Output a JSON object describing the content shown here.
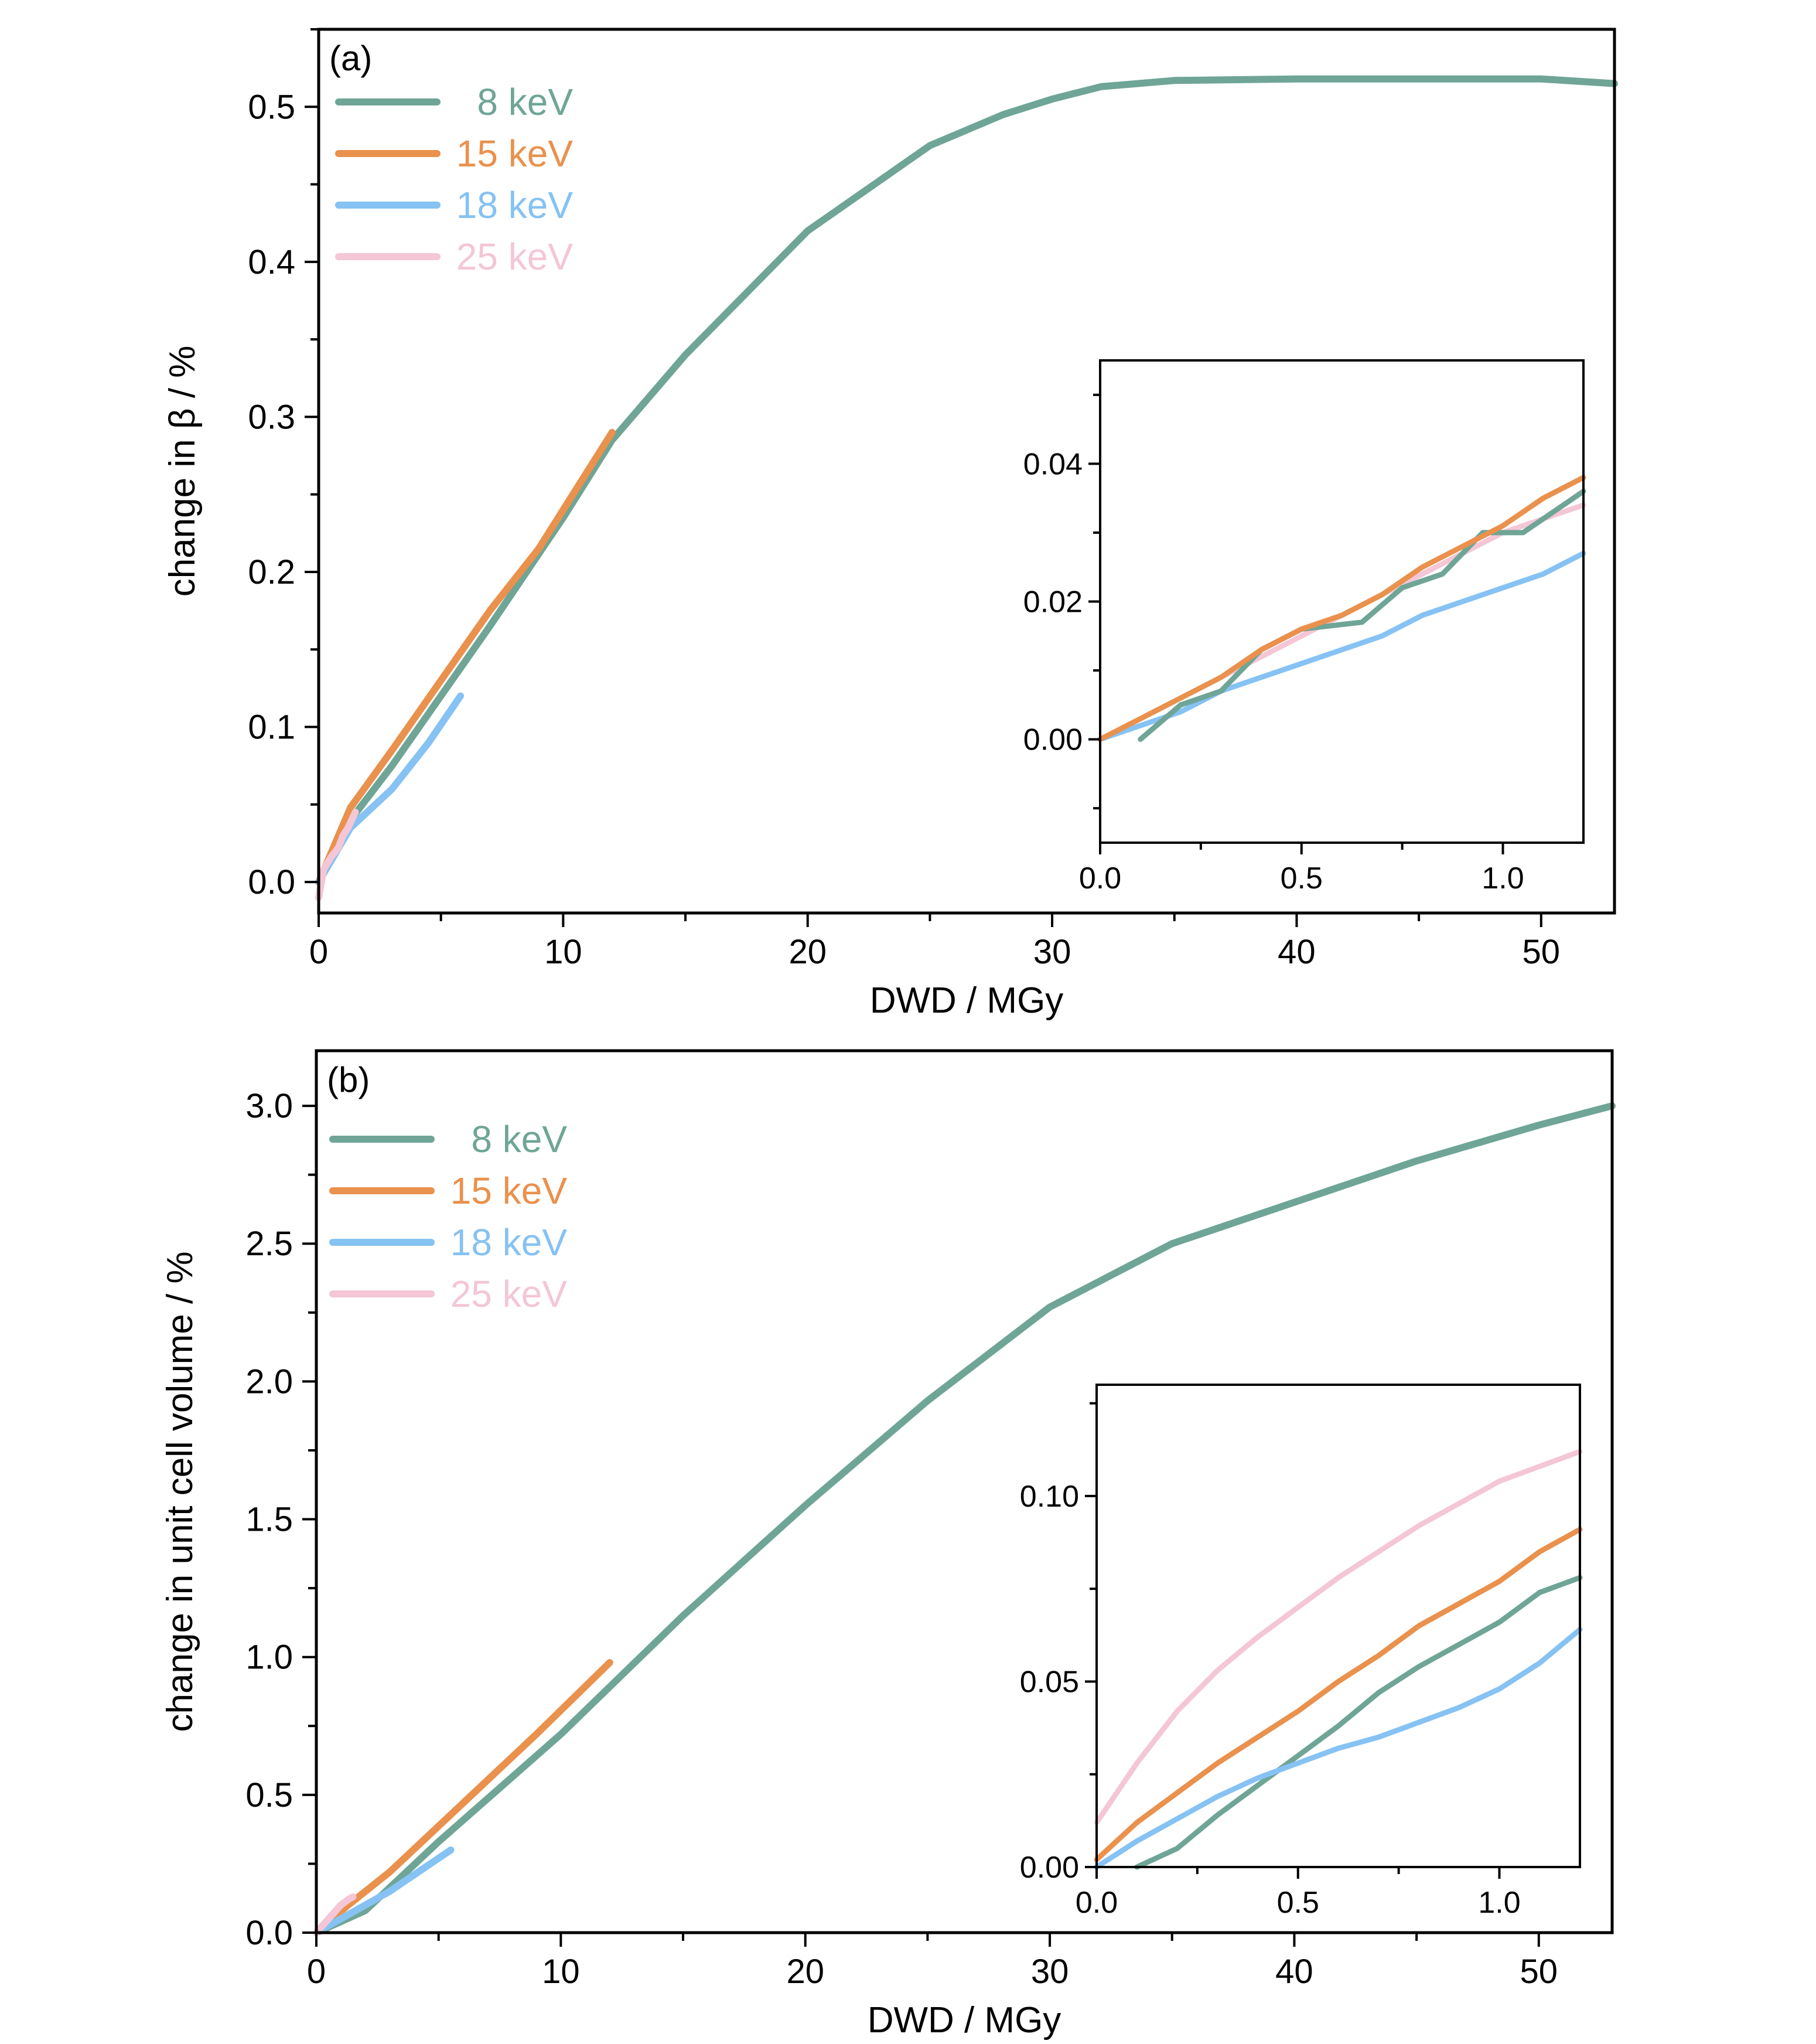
{
  "colors": {
    "8 keV": "#6fa596",
    "15 keV": "#e9914d",
    "18 keV": "#86c2f3",
    "25 keV": "#f4c6d6",
    "axis": "#000000"
  },
  "chart_data": [
    {
      "id": "a",
      "type": "line",
      "panel_label": "(a)",
      "xlabel": "DWD / MGy",
      "ylabel": "change in β / %",
      "xlim": [
        0,
        53
      ],
      "ylim": [
        -0.02,
        0.55
      ],
      "xticks": [
        0,
        10,
        20,
        30,
        40,
        50
      ],
      "xticklabels": [
        "0",
        "10",
        "20",
        "30",
        "40",
        "50"
      ],
      "yticks": [
        0.0,
        0.1,
        0.2,
        0.3,
        0.4,
        0.5
      ],
      "yticklabels": [
        "0.0",
        "0.1",
        "0.2",
        "0.3",
        "0.4",
        "0.5"
      ],
      "legend": {
        "position": "top-left",
        "entries": [
          "8 keV",
          "15 keV",
          "18 keV",
          "25 keV"
        ]
      },
      "series": [
        {
          "name": "8 keV",
          "x": [
            0,
            1.3,
            3,
            5,
            7,
            10,
            12,
            15,
            20,
            25,
            28,
            30,
            32,
            35,
            40,
            45,
            50,
            53
          ],
          "y": [
            0,
            0.04,
            0.075,
            0.12,
            0.165,
            0.235,
            0.285,
            0.34,
            0.42,
            0.475,
            0.495,
            0.505,
            0.513,
            0.517,
            0.518,
            0.518,
            0.518,
            0.515
          ]
        },
        {
          "name": "15 keV",
          "x": [
            0,
            1.3,
            3,
            5,
            7,
            9,
            11,
            12
          ],
          "y": [
            0,
            0.048,
            0.085,
            0.13,
            0.175,
            0.215,
            0.265,
            0.29
          ]
        },
        {
          "name": "18 keV",
          "x": [
            0,
            1.3,
            3,
            4.5,
            5.8
          ],
          "y": [
            0,
            0.035,
            0.06,
            0.09,
            0.12
          ]
        },
        {
          "name": "25 keV",
          "x": [
            0,
            0.2,
            0.5,
            0.8,
            1.0,
            1.2,
            1.5
          ],
          "y": [
            -0.01,
            0.008,
            0.016,
            0.022,
            0.03,
            0.035,
            0.045
          ]
        }
      ],
      "inset": {
        "xlim": [
          0,
          1.2
        ],
        "ylim": [
          -0.015,
          0.055
        ],
        "xticks": [
          0.0,
          0.5,
          1.0
        ],
        "xticklabels": [
          "0.0",
          "0.5",
          "1.0"
        ],
        "yticks": [
          0.0,
          0.02,
          0.04
        ],
        "yticklabels": [
          "0.00",
          "0.02",
          "0.04"
        ],
        "series": [
          {
            "name": "25 keV",
            "x": [
              0,
              0.1,
              0.2,
              0.3,
              0.4,
              0.5,
              0.6,
              0.7,
              0.8,
              0.9,
              1.0,
              1.1,
              1.2
            ],
            "y": [
              0.0,
              0.003,
              0.006,
              0.009,
              0.012,
              0.015,
              0.018,
              0.021,
              0.024,
              0.027,
              0.03,
              0.032,
              0.034
            ]
          },
          {
            "name": "18 keV",
            "x": [
              0,
              0.1,
              0.2,
              0.3,
              0.4,
              0.5,
              0.6,
              0.7,
              0.8,
              0.9,
              1.0,
              1.1,
              1.2
            ],
            "y": [
              0,
              0.002,
              0.004,
              0.007,
              0.009,
              0.011,
              0.013,
              0.015,
              0.018,
              0.02,
              0.022,
              0.024,
              0.027
            ]
          },
          {
            "name": "8 keV",
            "x": [
              0.1,
              0.2,
              0.3,
              0.4,
              0.5,
              0.65,
              0.75,
              0.85,
              0.95,
              1.05,
              1.2
            ],
            "y": [
              0,
              0.005,
              0.007,
              0.013,
              0.016,
              0.017,
              0.022,
              0.024,
              0.03,
              0.03,
              0.036
            ]
          },
          {
            "name": "15 keV",
            "x": [
              0,
              0.1,
              0.2,
              0.3,
              0.4,
              0.5,
              0.6,
              0.7,
              0.8,
              0.9,
              1.0,
              1.1,
              1.2
            ],
            "y": [
              0,
              0.003,
              0.006,
              0.009,
              0.013,
              0.016,
              0.018,
              0.021,
              0.025,
              0.028,
              0.031,
              0.035,
              0.038
            ]
          }
        ]
      }
    },
    {
      "id": "b",
      "type": "line",
      "panel_label": "(b)",
      "xlabel": "DWD / MGy",
      "ylabel": "change in unit cell volume  / %",
      "xlim": [
        0,
        53
      ],
      "ylim": [
        0,
        3.2
      ],
      "xticks": [
        0,
        10,
        20,
        30,
        40,
        50
      ],
      "xticklabels": [
        "0",
        "10",
        "20",
        "30",
        "40",
        "50"
      ],
      "yticks": [
        0.0,
        0.5,
        1.0,
        1.5,
        2.0,
        2.5,
        3.0
      ],
      "yticklabels": [
        "0.0",
        "0.5",
        "1.0",
        "1.5",
        "2.0",
        "2.5",
        "3.0"
      ],
      "legend": {
        "position": "top-left",
        "entries": [
          "8 keV",
          "15 keV",
          "18 keV",
          "25 keV"
        ]
      },
      "series": [
        {
          "name": "8 keV",
          "x": [
            0,
            2,
            5,
            10,
            15,
            20,
            25,
            30,
            35,
            40,
            45,
            50,
            53
          ],
          "y": [
            0,
            0.08,
            0.33,
            0.72,
            1.15,
            1.55,
            1.93,
            2.27,
            2.5,
            2.65,
            2.8,
            2.93,
            3.0
          ]
        },
        {
          "name": "15 keV",
          "x": [
            0,
            1.3,
            3,
            6,
            9,
            12
          ],
          "y": [
            0,
            0.1,
            0.22,
            0.47,
            0.72,
            0.98
          ]
        },
        {
          "name": "18 keV",
          "x": [
            0,
            1.3,
            3,
            5.5
          ],
          "y": [
            0,
            0.065,
            0.15,
            0.3
          ]
        },
        {
          "name": "25 keV",
          "x": [
            0,
            0.3,
            0.7,
            1.0,
            1.3,
            1.5
          ],
          "y": [
            0,
            0.03,
            0.07,
            0.1,
            0.12,
            0.13
          ]
        }
      ],
      "inset": {
        "xlim": [
          0,
          1.2
        ],
        "ylim": [
          0,
          0.13
        ],
        "xticks": [
          0.0,
          0.5,
          1.0
        ],
        "xticklabels": [
          "0.0",
          "0.5",
          "1.0"
        ],
        "yticks": [
          0.0,
          0.05,
          0.1
        ],
        "yticklabels": [
          "0.00",
          "0.05",
          "0.10"
        ],
        "series": [
          {
            "name": "25 keV",
            "x": [
              0,
              0.1,
              0.2,
              0.3,
              0.4,
              0.5,
              0.6,
              0.7,
              0.8,
              0.9,
              1.0,
              1.1,
              1.2
            ],
            "y": [
              0.012,
              0.028,
              0.042,
              0.053,
              0.062,
              0.07,
              0.078,
              0.085,
              0.092,
              0.098,
              0.104,
              0.108,
              0.112
            ]
          },
          {
            "name": "15 keV",
            "x": [
              0,
              0.1,
              0.2,
              0.3,
              0.4,
              0.5,
              0.6,
              0.7,
              0.8,
              0.9,
              1.0,
              1.1,
              1.2
            ],
            "y": [
              0.002,
              0.012,
              0.02,
              0.028,
              0.035,
              0.042,
              0.05,
              0.057,
              0.065,
              0.071,
              0.077,
              0.085,
              0.091
            ]
          },
          {
            "name": "8 keV",
            "x": [
              0.1,
              0.2,
              0.3,
              0.4,
              0.5,
              0.6,
              0.7,
              0.8,
              0.9,
              1.0,
              1.1,
              1.2
            ],
            "y": [
              0,
              0.005,
              0.014,
              0.022,
              0.03,
              0.038,
              0.047,
              0.054,
              0.06,
              0.066,
              0.074,
              0.078
            ]
          },
          {
            "name": "18 keV",
            "x": [
              0,
              0.1,
              0.2,
              0.3,
              0.4,
              0.5,
              0.6,
              0.7,
              0.8,
              0.9,
              1.0,
              1.1,
              1.2
            ],
            "y": [
              0,
              0.007,
              0.013,
              0.019,
              0.024,
              0.028,
              0.032,
              0.035,
              0.039,
              0.043,
              0.048,
              0.055,
              0.064
            ]
          }
        ]
      }
    }
  ]
}
